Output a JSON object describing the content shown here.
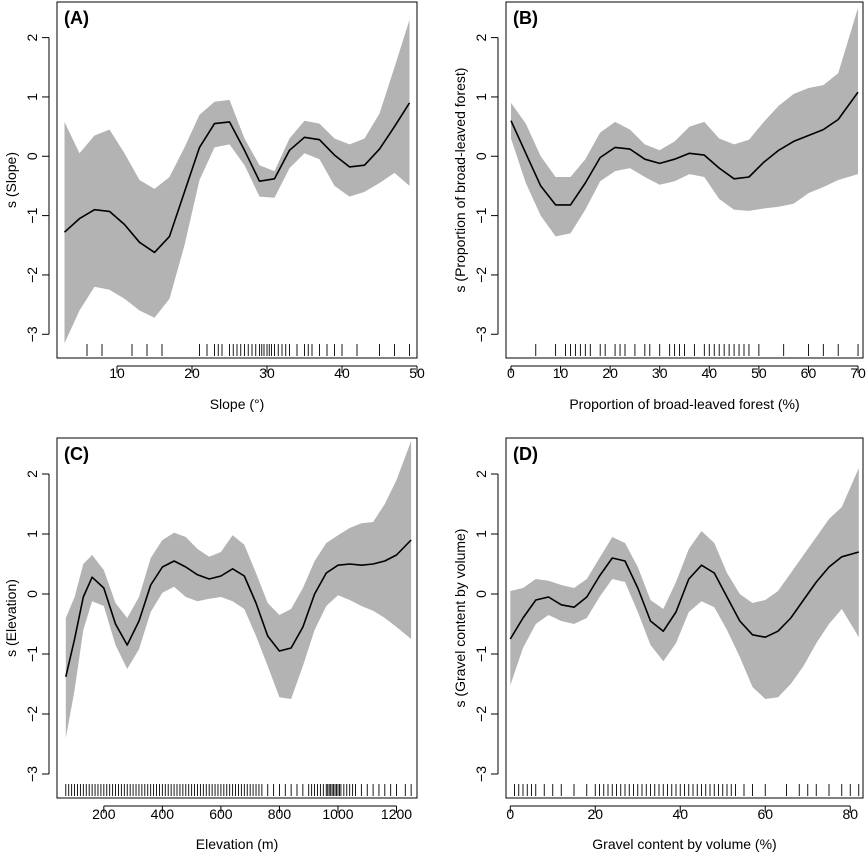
{
  "chart_data": [
    {
      "type": "line",
      "panel_label": "(A)",
      "xlabel": "Slope (°)",
      "ylabel": "s (Slope)",
      "xlim": [
        2,
        50
      ],
      "ylim": [
        -3.4,
        2.6
      ],
      "xticks": [
        10,
        20,
        30,
        40,
        50
      ],
      "yticks": [
        -3,
        -2,
        -1,
        0,
        1,
        2
      ],
      "x": [
        3,
        5,
        7,
        9,
        11,
        13,
        15,
        17,
        19,
        21,
        23,
        25,
        27,
        29,
        31,
        33,
        35,
        37,
        39,
        41,
        43,
        45,
        47,
        49
      ],
      "fit": [
        -1.28,
        -1.05,
        -0.9,
        -0.93,
        -1.15,
        -1.45,
        -1.62,
        -1.35,
        -0.6,
        0.15,
        0.55,
        0.58,
        0.1,
        -0.42,
        -0.38,
        0.1,
        0.32,
        0.28,
        0.02,
        -0.18,
        -0.15,
        0.12,
        0.5,
        0.9
      ],
      "upper": [
        0.58,
        0.05,
        0.35,
        0.45,
        0.05,
        -0.4,
        -0.55,
        -0.35,
        0.15,
        0.7,
        0.92,
        0.95,
        0.3,
        -0.15,
        -0.25,
        0.3,
        0.6,
        0.55,
        0.3,
        0.2,
        0.3,
        0.72,
        1.5,
        2.3
      ],
      "lower": [
        -3.15,
        -2.6,
        -2.2,
        -2.25,
        -2.4,
        -2.6,
        -2.72,
        -2.4,
        -1.5,
        -0.4,
        0.15,
        0.2,
        -0.15,
        -0.68,
        -0.7,
        -0.2,
        0.05,
        -0.05,
        -0.5,
        -0.68,
        -0.6,
        -0.45,
        -0.28,
        -0.5
      ],
      "rug": [
        6,
        8,
        12,
        14,
        16,
        21,
        22,
        23,
        23.5,
        24,
        25,
        25.5,
        26,
        26.5,
        27,
        27.5,
        28,
        28.5,
        29,
        29.3,
        29.6,
        30,
        30.3,
        30.6,
        31,
        31.5,
        32,
        32.5,
        33,
        34,
        35,
        35.5,
        36,
        37,
        38,
        39,
        40,
        42,
        45,
        47,
        49
      ]
    },
    {
      "type": "line",
      "panel_label": "(B)",
      "xlabel": "Proportion of broad-leaved forest (%)",
      "ylabel": "s (Proportion of broad-leaved forest)",
      "xlim": [
        -1,
        71
      ],
      "ylim": [
        -3.4,
        2.6
      ],
      "xticks": [
        0,
        10,
        20,
        30,
        40,
        50,
        60,
        70
      ],
      "yticks": [
        -3,
        -2,
        -1,
        0,
        1,
        2
      ],
      "x": [
        0,
        3,
        6,
        9,
        12,
        15,
        18,
        21,
        24,
        27,
        30,
        33,
        36,
        39,
        42,
        45,
        48,
        51,
        54,
        57,
        60,
        63,
        66,
        70
      ],
      "fit": [
        0.6,
        0.05,
        -0.5,
        -0.82,
        -0.82,
        -0.45,
        -0.02,
        0.15,
        0.12,
        -0.05,
        -0.12,
        -0.05,
        0.05,
        0.02,
        -0.2,
        -0.38,
        -0.35,
        -0.1,
        0.1,
        0.25,
        0.35,
        0.45,
        0.62,
        1.08
      ],
      "upper": [
        0.9,
        0.55,
        0.0,
        -0.35,
        -0.35,
        -0.05,
        0.4,
        0.58,
        0.45,
        0.2,
        0.1,
        0.25,
        0.5,
        0.58,
        0.3,
        0.2,
        0.28,
        0.58,
        0.85,
        1.05,
        1.15,
        1.2,
        1.4,
        2.5
      ],
      "lower": [
        0.3,
        -0.45,
        -1.0,
        -1.35,
        -1.3,
        -0.9,
        -0.42,
        -0.25,
        -0.2,
        -0.35,
        -0.48,
        -0.42,
        -0.3,
        -0.35,
        -0.72,
        -0.9,
        -0.92,
        -0.88,
        -0.85,
        -0.8,
        -0.62,
        -0.52,
        -0.4,
        -0.3
      ],
      "rug": [
        5,
        9,
        11,
        12,
        13,
        14,
        15,
        16,
        18,
        19,
        21,
        22,
        23,
        25,
        27,
        28,
        30,
        32,
        33,
        34,
        35,
        37,
        39,
        40,
        41,
        42,
        43,
        44,
        45,
        46,
        47,
        48,
        50,
        55,
        60,
        63,
        66,
        70
      ]
    },
    {
      "type": "line",
      "panel_label": "(C)",
      "xlabel": "Elevation (m)",
      "ylabel": "s (Elevation)",
      "xlim": [
        40,
        1270
      ],
      "ylim": [
        -3.4,
        2.6
      ],
      "xticks": [
        200,
        400,
        600,
        800,
        1000,
        1200
      ],
      "yticks": [
        -3,
        -2,
        -1,
        0,
        1,
        2
      ],
      "x": [
        70,
        100,
        130,
        160,
        200,
        240,
        280,
        320,
        360,
        400,
        440,
        480,
        520,
        560,
        600,
        640,
        680,
        720,
        760,
        800,
        840,
        880,
        920,
        960,
        1000,
        1040,
        1080,
        1120,
        1160,
        1200,
        1250
      ],
      "fit": [
        -1.38,
        -0.75,
        -0.05,
        0.28,
        0.1,
        -0.5,
        -0.85,
        -0.45,
        0.15,
        0.45,
        0.55,
        0.45,
        0.32,
        0.25,
        0.3,
        0.42,
        0.3,
        -0.15,
        -0.7,
        -0.95,
        -0.9,
        -0.55,
        0.0,
        0.35,
        0.48,
        0.5,
        0.48,
        0.5,
        0.55,
        0.65,
        0.9
      ],
      "upper": [
        -0.4,
        -0.05,
        0.5,
        0.65,
        0.4,
        -0.15,
        -0.4,
        -0.05,
        0.6,
        0.9,
        1.02,
        0.95,
        0.75,
        0.62,
        0.7,
        0.98,
        0.82,
        0.35,
        -0.15,
        -0.35,
        -0.25,
        0.1,
        0.55,
        0.85,
        0.98,
        1.1,
        1.18,
        1.2,
        1.5,
        1.9,
        2.55
      ],
      "lower": [
        -2.4,
        -1.6,
        -0.6,
        -0.12,
        -0.2,
        -0.85,
        -1.25,
        -0.92,
        -0.3,
        0.02,
        0.12,
        -0.05,
        -0.12,
        -0.08,
        -0.05,
        -0.12,
        -0.25,
        -0.7,
        -1.2,
        -1.72,
        -1.75,
        -1.2,
        -0.6,
        -0.2,
        -0.02,
        -0.1,
        -0.2,
        -0.28,
        -0.4,
        -0.55,
        -0.75
      ],
      "rug": [
        70,
        80,
        90,
        100,
        110,
        120,
        130,
        140,
        150,
        160,
        170,
        180,
        190,
        200,
        210,
        220,
        230,
        240,
        250,
        260,
        270,
        280,
        290,
        300,
        310,
        320,
        330,
        340,
        350,
        360,
        370,
        380,
        390,
        400,
        410,
        420,
        430,
        440,
        450,
        460,
        470,
        480,
        490,
        500,
        510,
        520,
        530,
        540,
        550,
        560,
        570,
        580,
        590,
        600,
        610,
        620,
        630,
        640,
        650,
        660,
        670,
        680,
        690,
        700,
        710,
        720,
        730,
        740,
        760,
        780,
        800,
        820,
        840,
        860,
        880,
        900,
        910,
        920,
        930,
        940,
        950,
        960,
        965,
        970,
        975,
        980,
        985,
        990,
        995,
        1000,
        1005,
        1010,
        1020,
        1030,
        1040,
        1050,
        1060,
        1080,
        1100,
        1120,
        1140,
        1160,
        1180,
        1200,
        1230,
        1250
      ]
    },
    {
      "type": "line",
      "panel_label": "(D)",
      "xlabel": "Gravel content by volume (%)",
      "ylabel": "s (Gravel content by volume)",
      "xlim": [
        -1,
        83
      ],
      "ylim": [
        -3.4,
        2.6
      ],
      "xticks": [
        0,
        20,
        40,
        60,
        80
      ],
      "yticks": [
        -3,
        -2,
        -1,
        0,
        1,
        2
      ],
      "x": [
        0,
        3,
        6,
        9,
        12,
        15,
        18,
        21,
        24,
        27,
        30,
        33,
        36,
        39,
        42,
        45,
        48,
        51,
        54,
        57,
        60,
        63,
        66,
        69,
        72,
        75,
        78,
        82
      ],
      "fit": [
        -0.75,
        -0.4,
        -0.1,
        -0.05,
        -0.18,
        -0.22,
        -0.05,
        0.3,
        0.6,
        0.55,
        0.1,
        -0.45,
        -0.62,
        -0.3,
        0.25,
        0.48,
        0.35,
        -0.05,
        -0.45,
        -0.68,
        -0.72,
        -0.62,
        -0.4,
        -0.1,
        0.2,
        0.45,
        0.62,
        0.7
      ],
      "upper": [
        0.05,
        0.1,
        0.25,
        0.22,
        0.15,
        0.1,
        0.25,
        0.6,
        0.95,
        0.85,
        0.45,
        -0.1,
        -0.25,
        0.2,
        0.75,
        1.05,
        0.85,
        0.35,
        0.0,
        -0.15,
        -0.1,
        0.05,
        0.35,
        0.65,
        0.95,
        1.25,
        1.45,
        2.1
      ],
      "lower": [
        -1.52,
        -0.9,
        -0.5,
        -0.35,
        -0.45,
        -0.5,
        -0.4,
        -0.05,
        0.25,
        0.2,
        -0.3,
        -0.85,
        -1.12,
        -0.82,
        -0.3,
        -0.12,
        -0.22,
        -0.6,
        -1.05,
        -1.55,
        -1.75,
        -1.72,
        -1.5,
        -1.2,
        -0.82,
        -0.5,
        -0.25,
        -0.72
      ],
      "rug": [
        1,
        2,
        3,
        4,
        5,
        6,
        8,
        10,
        12,
        15,
        18,
        20,
        21,
        22,
        23,
        24,
        25,
        26,
        27,
        28,
        29,
        30,
        31,
        32,
        33,
        34,
        35,
        36,
        37,
        38,
        39,
        40,
        41,
        42,
        43,
        44,
        45,
        46,
        47,
        48,
        49,
        50,
        51,
        52,
        53,
        55,
        57,
        60,
        65,
        68,
        70,
        72,
        75,
        78,
        80,
        82
      ]
    }
  ]
}
